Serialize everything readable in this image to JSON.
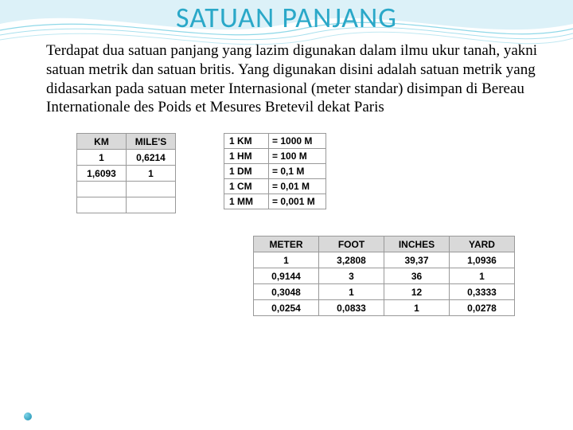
{
  "title": "SATUAN PANJANG",
  "paragraph": "Terdapat dua satuan panjang yang lazim digunakan dalam ilmu ukur tanah, yakni satuan metrik dan satuan britis. Yang digunakan disini adalah satuan metrik yang didasarkan pada satuan meter Internasional (meter standar) disimpan di Bereau Internationale des Poids et Mesures Bretevil dekat Paris",
  "table1": {
    "headers": [
      "KM",
      "MILE'S"
    ],
    "rows": [
      [
        "1",
        "0,6214"
      ],
      [
        "1,6093",
        "1"
      ],
      [
        "",
        ""
      ],
      [
        "",
        ""
      ]
    ]
  },
  "table2": {
    "rows": [
      [
        "1 KM",
        "= 1000 M"
      ],
      [
        "1 HM",
        "= 100 M"
      ],
      [
        "1 DM",
        "= 0,1 M"
      ],
      [
        "1 CM",
        "= 0,01 M"
      ],
      [
        "1 MM",
        "= 0,001 M"
      ]
    ]
  },
  "table3": {
    "headers": [
      "METER",
      "FOOT",
      "INCHES",
      "YARD"
    ],
    "rows": [
      [
        "1",
        "3,2808",
        "39,37",
        "1,0936"
      ],
      [
        "0,9144",
        "3",
        "36",
        "1"
      ],
      [
        "0,3048",
        "1",
        "12",
        "0,3333"
      ],
      [
        "0,0254",
        "0,0833",
        "1",
        "0,0278"
      ]
    ]
  },
  "colors": {
    "title": "#2aa8c8",
    "wave1": "#bfe8f2",
    "wave2": "#7fd4e8",
    "header_bg": "#d9d9d9",
    "border": "#999999"
  }
}
